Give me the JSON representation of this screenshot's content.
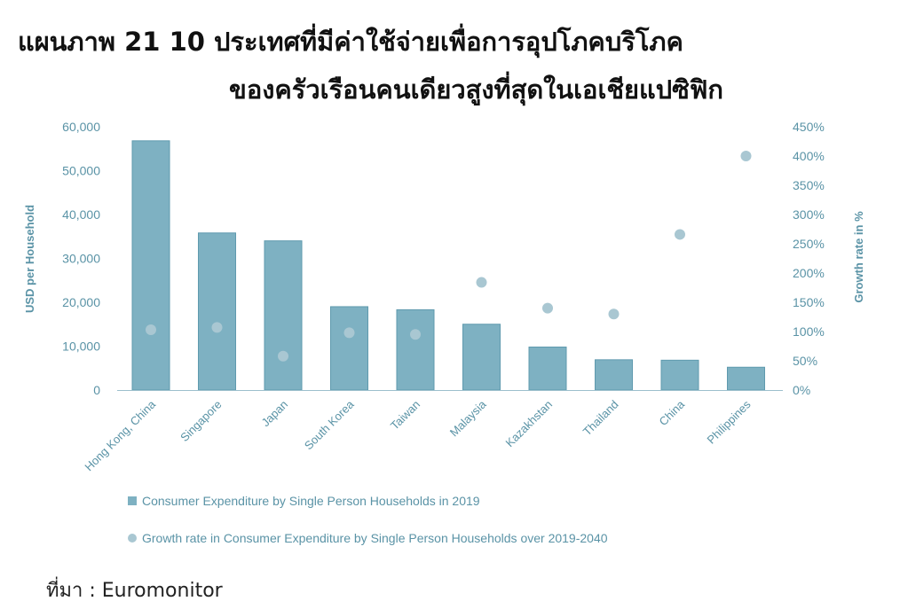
{
  "title": {
    "line1": "แผนภาพ  21  10 ประเทศที่มีค่าใช้จ่ายเพื่อการอุปโภคบริโภค",
    "line2": "ของครัวเรือนคนเดียวสูงที่สุดในเอเชียแปซิฟิก"
  },
  "source": "ที่มา : Euromonitor",
  "chart_data": {
    "type": "bar",
    "categories": [
      "Hong Kong, China",
      "Singapore",
      "Japan",
      "South Korea",
      "Taiwan",
      "Malaysia",
      "Kazakhstan",
      "Thailand",
      "China",
      "Philippines"
    ],
    "series": [
      {
        "name": "Consumer Expenditure by Single Person Households in 2019",
        "type": "bar",
        "axis": "left",
        "values": [
          56800,
          35800,
          34000,
          19000,
          18300,
          15000,
          9800,
          6900,
          6800,
          5200
        ]
      },
      {
        "name": "Growth rate in Consumer Expenditure by Single Person Households over 2019-2040",
        "type": "scatter",
        "axis": "right",
        "values": [
          103,
          107,
          58,
          98,
          95,
          184,
          140,
          130,
          266,
          400
        ]
      }
    ],
    "y_left": {
      "label": "USD per Household",
      "ylim": [
        0,
        60000
      ],
      "ticks": [
        "0",
        "10,000",
        "20,000",
        "30,000",
        "40,000",
        "50,000",
        "60,000"
      ]
    },
    "y_right": {
      "label": "Growth rate in %",
      "ylim": [
        0,
        450
      ],
      "ticks": [
        "0%",
        "50%",
        "100%",
        "150%",
        "200%",
        "250%",
        "300%",
        "350%",
        "400%",
        "450%"
      ]
    },
    "grid": false,
    "legend_position": "bottom",
    "colors": {
      "bar_fill": "#7eb1c2",
      "bar_stroke": "#5f9aae",
      "dot_fill": "#a9c7d2",
      "text": "#5a93a6",
      "axis_line": "#9cbfcc"
    }
  }
}
